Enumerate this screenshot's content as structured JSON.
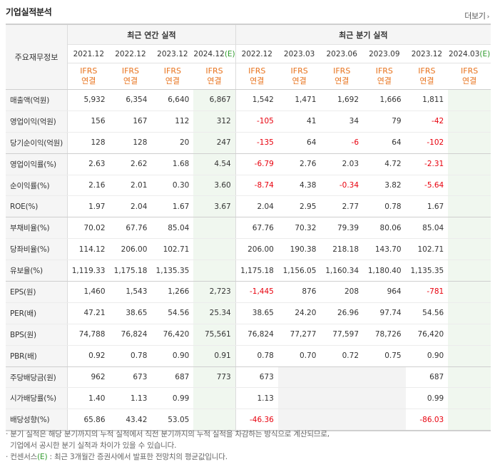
{
  "title": "기업실적분석",
  "more_label": "더보기",
  "more_arrow": "›",
  "header": {
    "row_label": "주요재무정보",
    "annual_group": "최근 연간 실적",
    "quarter_group": "최근 분기 실적",
    "annual_periods": [
      "2021.12",
      "2022.12",
      "2023.12",
      "2024.12"
    ],
    "annual_est_mark": "(E)",
    "quarter_periods": [
      "2022.12",
      "2023.03",
      "2023.06",
      "2023.09",
      "2023.12",
      "2024.03"
    ],
    "quarter_est_mark": "(E)",
    "ifrs_line1": "IFRS",
    "ifrs_line2": "연결"
  },
  "rows": [
    {
      "label": "매출액(억원)",
      "annual": [
        "5,932",
        "6,354",
        "6,640",
        "6,867"
      ],
      "quarter": [
        "1,542",
        "1,471",
        "1,692",
        "1,666",
        "1,811",
        ""
      ]
    },
    {
      "label": "영업이익(억원)",
      "annual": [
        "156",
        "167",
        "112",
        "312"
      ],
      "quarter": [
        "-105",
        "41",
        "34",
        "79",
        "-42",
        ""
      ]
    },
    {
      "label": "당기순이익(억원)",
      "annual": [
        "128",
        "128",
        "20",
        "247"
      ],
      "quarter": [
        "-135",
        "64",
        "-6",
        "64",
        "-102",
        ""
      ]
    },
    {
      "label": "영업이익률(%)",
      "annual": [
        "2.63",
        "2.62",
        "1.68",
        "4.54"
      ],
      "quarter": [
        "-6.79",
        "2.76",
        "2.03",
        "4.72",
        "-2.31",
        ""
      ]
    },
    {
      "label": "순이익률(%)",
      "annual": [
        "2.16",
        "2.01",
        "0.30",
        "3.60"
      ],
      "quarter": [
        "-8.74",
        "4.38",
        "-0.34",
        "3.82",
        "-5.64",
        ""
      ]
    },
    {
      "label": "ROE(%)",
      "annual": [
        "1.97",
        "2.04",
        "1.67",
        "3.67"
      ],
      "quarter": [
        "2.04",
        "2.95",
        "2.77",
        "0.78",
        "1.67",
        ""
      ]
    },
    {
      "label": "부채비율(%)",
      "annual": [
        "70.02",
        "67.76",
        "85.04",
        ""
      ],
      "quarter": [
        "67.76",
        "70.32",
        "79.39",
        "80.06",
        "85.04",
        ""
      ]
    },
    {
      "label": "당좌비율(%)",
      "annual": [
        "114.12",
        "206.00",
        "102.71",
        ""
      ],
      "quarter": [
        "206.00",
        "190.38",
        "218.18",
        "143.70",
        "102.71",
        ""
      ]
    },
    {
      "label": "유보율(%)",
      "annual": [
        "1,119.33",
        "1,175.18",
        "1,135.35",
        ""
      ],
      "quarter": [
        "1,175.18",
        "1,156.05",
        "1,160.34",
        "1,180.40",
        "1,135.35",
        ""
      ]
    },
    {
      "label": "EPS(원)",
      "annual": [
        "1,460",
        "1,543",
        "1,266",
        "2,723"
      ],
      "quarter": [
        "-1,445",
        "876",
        "208",
        "964",
        "-781",
        ""
      ]
    },
    {
      "label": "PER(배)",
      "annual": [
        "47.21",
        "38.65",
        "54.56",
        "25.34"
      ],
      "quarter": [
        "38.65",
        "24.20",
        "26.96",
        "97.74",
        "54.56",
        ""
      ]
    },
    {
      "label": "BPS(원)",
      "annual": [
        "74,788",
        "76,824",
        "76,420",
        "75,561"
      ],
      "quarter": [
        "76,824",
        "77,277",
        "77,597",
        "78,726",
        "76,420",
        ""
      ]
    },
    {
      "label": "PBR(배)",
      "annual": [
        "0.92",
        "0.78",
        "0.90",
        "0.91"
      ],
      "quarter": [
        "0.78",
        "0.70",
        "0.72",
        "0.75",
        "0.90",
        ""
      ]
    },
    {
      "label": "주당배당금(원)",
      "annual": [
        "962",
        "673",
        "687",
        "773"
      ],
      "quarter": [
        "673",
        "",
        "",
        "",
        "687",
        ""
      ]
    },
    {
      "label": "시가배당률(%)",
      "annual": [
        "1.40",
        "1.13",
        "0.99",
        ""
      ],
      "quarter": [
        "1.13",
        "",
        "",
        "",
        "0.99",
        ""
      ]
    },
    {
      "label": "배당성향(%)",
      "annual": [
        "65.86",
        "43.42",
        "53.05",
        ""
      ],
      "quarter": [
        "-46.36",
        "",
        "",
        "",
        "-86.03",
        ""
      ]
    }
  ],
  "notes": {
    "line1": "· 분기 실적은 해당 분기까지의 누적 실적에서 직전 분기까지의 누적 실적을 차감하는 방식으로 계산되므로,",
    "line2": "기업에서 공시한 분기 실적과 차이가 있을 수 있습니다.",
    "line3_prefix": "· 컨센서스",
    "line3_mark": "(E)",
    "line3_suffix": " : 최근 3개월간 증권사에서 발표한 전망치의 평균값입니다."
  },
  "colors": {
    "negative": "#e8000d",
    "ifrs": "#e8731d",
    "estimate_bg": "#f0f7ef",
    "estimate_mark": "#2e9a2b"
  }
}
